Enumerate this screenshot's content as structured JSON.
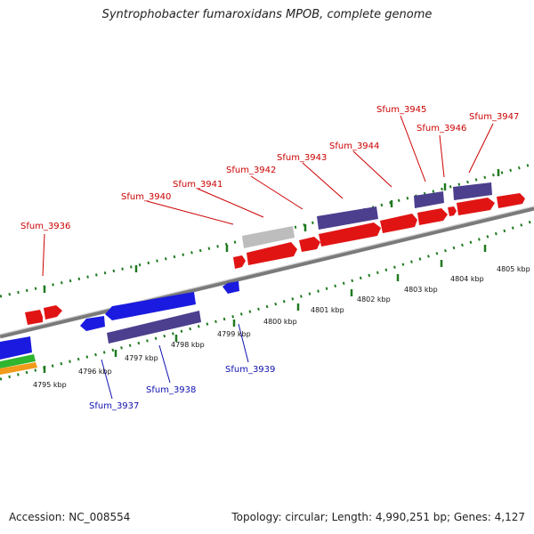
{
  "title": "Syntrophobacter fumaroxidans MPOB, complete genome",
  "footer": {
    "accession": "Accession: NC_008554",
    "topology": "Topology: circular; Length: 4,990,251 bp; Genes: 4,127"
  },
  "colors": {
    "forward_gene": "#e11414",
    "reverse_gene": "#1a1ae0",
    "purple_gene": "#4b3f8e",
    "grey_gene": "#bdbdbd",
    "green_gene": "#2fb52f",
    "orange_gene": "#f29a1a",
    "backbone": "#7a7a7a",
    "ticks": "#1f7a1f",
    "forward_label": "#cc0000",
    "reverse_label": "#1010b0"
  },
  "kbp_ticks": [
    "4795 kbp",
    "4796 kbp",
    "4797 kbp",
    "4798 kbp",
    "4799 kbp",
    "4800 kbp",
    "4801 kbp",
    "4802 kbp",
    "4803 kbp",
    "4804 kbp",
    "4805 kbp"
  ],
  "gene_labels": {
    "forward": [
      "Sfum_3936",
      "Sfum_3940",
      "Sfum_3941",
      "Sfum_3942",
      "Sfum_3943",
      "Sfum_3944",
      "Sfum_3945",
      "Sfum_3946",
      "Sfum_3947"
    ],
    "reverse": [
      "Sfum_3937",
      "Sfum_3938",
      "Sfum_3939"
    ]
  }
}
